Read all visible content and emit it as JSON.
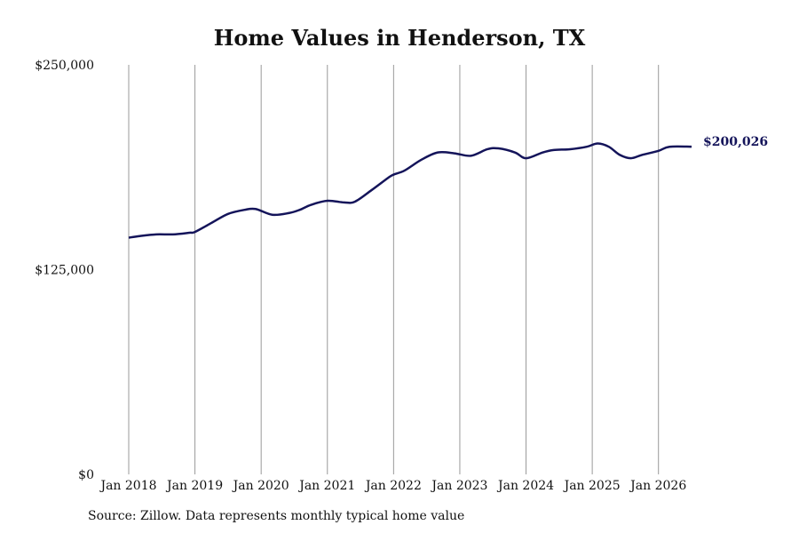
{
  "title": "Home Values in Henderson, TX",
  "source": "Source: Zillow. Data represents monthly typical home value",
  "chart_data": {
    "type": "line",
    "title": "Home Values in Henderson, TX",
    "xlabel": "",
    "ylabel": "",
    "ylim": [
      0,
      250000
    ],
    "y_ticks": [
      0,
      125000,
      250000
    ],
    "y_tick_labels": [
      "$0",
      "$125,000",
      "$250,000"
    ],
    "x_ticks": [
      "2018-01",
      "2019-01",
      "2020-01",
      "2021-01",
      "2022-01",
      "2023-01",
      "2024-01",
      "2025-01",
      "2026-01"
    ],
    "x_tick_labels": [
      "Jan 2018",
      "Jan 2019",
      "Jan 2020",
      "Jan 2021",
      "Jan 2022",
      "Jan 2023",
      "Jan 2024",
      "Jan 2025",
      "Jan 2026"
    ],
    "xlim": [
      "2018-01",
      "2026-07"
    ],
    "vertical_gridlines": true,
    "line_color": "#14145a",
    "gridline_color": "#999999",
    "end_label": "$200,026",
    "series": [
      {
        "x": [
          "2018-01",
          "2018-03",
          "2018-06",
          "2018-09",
          "2018-12",
          "2019-01",
          "2019-04",
          "2019-07",
          "2019-10",
          "2019-12",
          "2020-03",
          "2020-06",
          "2020-08",
          "2020-10",
          "2021-01",
          "2021-04",
          "2021-06",
          "2021-09",
          "2021-12",
          "2022-01",
          "2022-03",
          "2022-06",
          "2022-09",
          "2022-12",
          "2023-03",
          "2023-06",
          "2023-08",
          "2023-11",
          "2024-01",
          "2024-04",
          "2024-06",
          "2024-09",
          "2024-12",
          "2025-02",
          "2025-04",
          "2025-06",
          "2025-08",
          "2025-10",
          "2026-01",
          "2026-03",
          "2026-07"
        ],
        "y": [
          144500,
          145500,
          146500,
          146500,
          147500,
          148000,
          153500,
          159000,
          161500,
          162000,
          158500,
          159500,
          161500,
          164500,
          167000,
          166000,
          166500,
          173500,
          181000,
          183000,
          185500,
          192000,
          196500,
          196000,
          194500,
          198500,
          199000,
          196500,
          193000,
          196500,
          198000,
          198500,
          200000,
          202000,
          200000,
          195000,
          193000,
          195000,
          197500,
          200000,
          200026
        ]
      }
    ]
  }
}
